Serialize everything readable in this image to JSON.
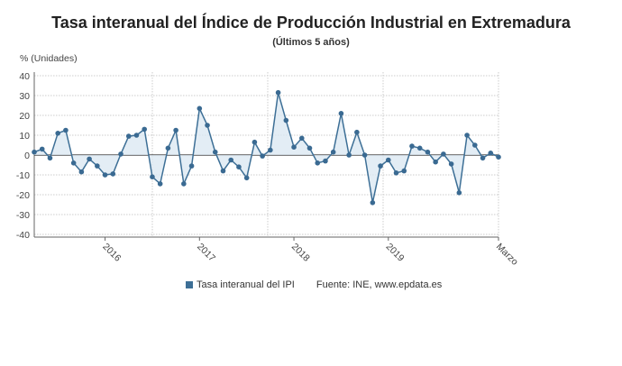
{
  "title": "Tasa interanual del Índice de Producción Industrial en Extremadura",
  "subtitle": "(Últimos 5 años)",
  "source": "Fuente: INE, www.epdata.es",
  "colors": {
    "line": "#3d6f96",
    "fill": "#dce8f3",
    "marker": "#3a6a92"
  },
  "chart_data": {
    "type": "line",
    "title": "Tasa interanual del Índice de Producción Industrial en Extremadura",
    "subtitle": "(Últimos 5 años)",
    "ylabel": "% (Unidades)",
    "ylim": [
      -40,
      40
    ],
    "yticks": [
      40,
      30,
      20,
      10,
      0,
      -10,
      -20,
      -30,
      -40
    ],
    "x_ticks": [
      {
        "label": "2016",
        "index": 9
      },
      {
        "label": "2017",
        "index": 21
      },
      {
        "label": "2018",
        "index": 33
      },
      {
        "label": "2019",
        "index": 45
      },
      {
        "label": "Marzo",
        "index": 59
      }
    ],
    "x_range": [
      "2015-04",
      "2020-03"
    ],
    "grid": true,
    "legend": "bottom",
    "series": [
      {
        "name": "Tasa interanual del IPI",
        "values": [
          1.5,
          3,
          -1.5,
          11,
          12.5,
          -4,
          -8.5,
          -2,
          -5.5,
          -10,
          -9.5,
          0.5,
          9.5,
          10,
          13,
          -11,
          -14.5,
          3.5,
          12.5,
          -14.5,
          -5.5,
          23.5,
          15,
          1.5,
          -8,
          -2.5,
          -6,
          -11.5,
          6.5,
          -0.5,
          2.5,
          31.5,
          17.5,
          4,
          8.5,
          3.5,
          -4,
          -3,
          1.5,
          21,
          0,
          11.5,
          0,
          -24,
          -5.5,
          -2.5,
          -9,
          -8,
          4.5,
          3.5,
          1.5,
          -3.5,
          0.5,
          -4.5,
          -19,
          10,
          5,
          -1.5,
          1,
          -1
        ]
      }
    ]
  }
}
